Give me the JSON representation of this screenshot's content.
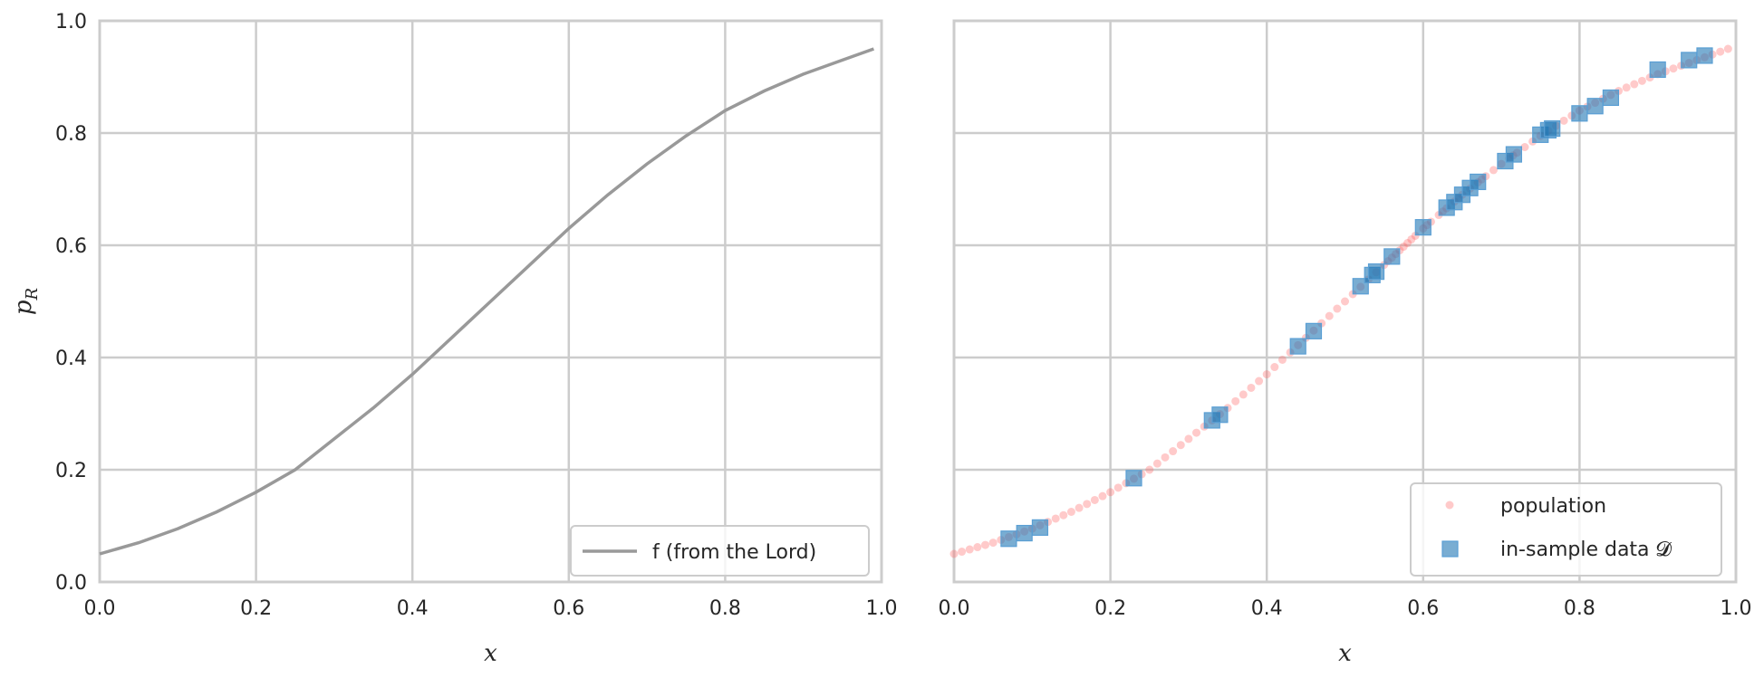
{
  "chart_data": [
    {
      "type": "line",
      "panel": "left",
      "xlabel": "x",
      "ylabel": "p_R",
      "xlim": [
        0.0,
        1.0
      ],
      "ylim": [
        0.0,
        1.0
      ],
      "xticks": [
        "0.0",
        "0.2",
        "0.4",
        "0.6",
        "0.8",
        "1.0"
      ],
      "yticks": [
        "0.0",
        "0.2",
        "0.4",
        "0.6",
        "0.8",
        "1.0"
      ],
      "grid": true,
      "legend_position": "lower-right",
      "series": [
        {
          "name": "f (from the Lord)",
          "color": "#999999",
          "x": [
            0,
            0.05,
            0.1,
            0.15,
            0.2,
            0.25,
            0.3,
            0.35,
            0.4,
            0.45,
            0.5,
            0.55,
            0.6,
            0.65,
            0.7,
            0.75,
            0.8,
            0.85,
            0.9,
            0.95,
            0.99
          ],
          "y": [
            0.05,
            0.07,
            0.095,
            0.125,
            0.16,
            0.2,
            0.255,
            0.31,
            0.37,
            0.435,
            0.5,
            0.565,
            0.63,
            0.69,
            0.745,
            0.795,
            0.84,
            0.875,
            0.905,
            0.93,
            0.95
          ]
        }
      ]
    },
    {
      "type": "scatter",
      "panel": "right",
      "xlabel": "x",
      "xlim": [
        0.0,
        1.0
      ],
      "ylim": [
        0.0,
        1.0
      ],
      "xticks": [
        "0.0",
        "0.2",
        "0.4",
        "0.6",
        "0.8",
        "1.0"
      ],
      "grid": true,
      "legend_position": "lower-right",
      "series": [
        {
          "name": "population",
          "color": "#ff6666",
          "marker": "circle",
          "y_source": "f (from the Lord)",
          "x": [
            0,
            0.01,
            0.02,
            0.03,
            0.04,
            0.05,
            0.06,
            0.07,
            0.08,
            0.09,
            0.1,
            0.11,
            0.12,
            0.13,
            0.14,
            0.15,
            0.16,
            0.17,
            0.18,
            0.19,
            0.2,
            0.21,
            0.22,
            0.23,
            0.24,
            0.25,
            0.26,
            0.27,
            0.28,
            0.29,
            0.3,
            0.31,
            0.32,
            0.33,
            0.34,
            0.35,
            0.36,
            0.37,
            0.38,
            0.39,
            0.4,
            0.41,
            0.42,
            0.43,
            0.44,
            0.45,
            0.46,
            0.47,
            0.48,
            0.49,
            0.5,
            0.51,
            0.52,
            0.53,
            0.54,
            0.55,
            0.555,
            0.56,
            0.565,
            0.57,
            0.575,
            0.58,
            0.585,
            0.59,
            0.6,
            0.605,
            0.61,
            0.62,
            0.625,
            0.63,
            0.64,
            0.645,
            0.65,
            0.66,
            0.67,
            0.675,
            0.68,
            0.69,
            0.7,
            0.71,
            0.715,
            0.72,
            0.73,
            0.74,
            0.75,
            0.76,
            0.77,
            0.78,
            0.79,
            0.8,
            0.81,
            0.82,
            0.83,
            0.84,
            0.85,
            0.86,
            0.87,
            0.88,
            0.89,
            0.9,
            0.91,
            0.92,
            0.93,
            0.94,
            0.95,
            0.96,
            0.97,
            0.98,
            0.99
          ]
        },
        {
          "name": "in-sample data 𝓓",
          "color": "#1f77b4",
          "marker": "square",
          "x": [
            0.07,
            0.09,
            0.11,
            0.23,
            0.33,
            0.34,
            0.44,
            0.46,
            0.52,
            0.535,
            0.54,
            0.56,
            0.6,
            0.63,
            0.64,
            0.65,
            0.66,
            0.67,
            0.705,
            0.716,
            0.75,
            0.76,
            0.765,
            0.8,
            0.82,
            0.84,
            0.9,
            0.94,
            0.96
          ],
          "y": [
            0.077,
            0.087,
            0.097,
            0.185,
            0.288,
            0.298,
            0.42,
            0.447,
            0.527,
            0.547,
            0.553,
            0.58,
            0.632,
            0.667,
            0.677,
            0.69,
            0.702,
            0.713,
            0.75,
            0.762,
            0.797,
            0.805,
            0.808,
            0.835,
            0.848,
            0.863,
            0.913,
            0.93,
            0.938
          ]
        }
      ]
    }
  ]
}
